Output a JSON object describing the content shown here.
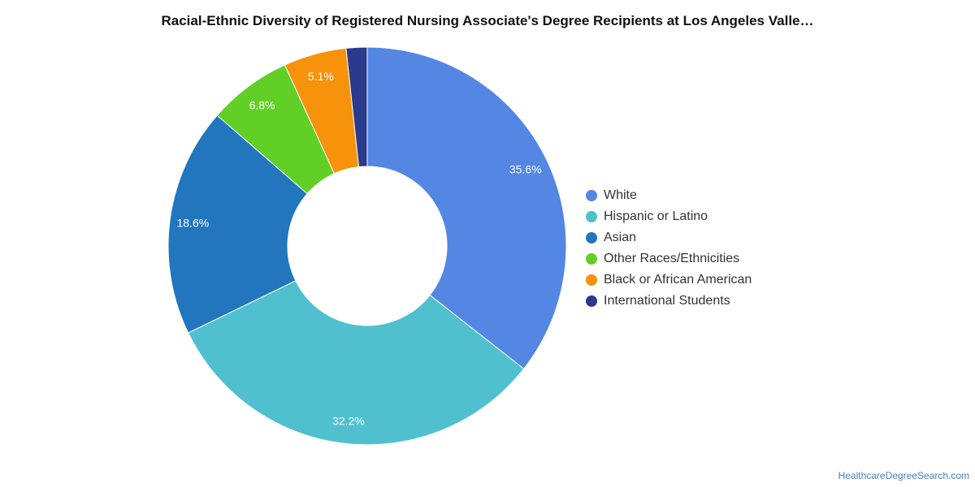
{
  "title": "Racial-Ethnic Diversity of Registered Nursing Associate's Degree Recipients at Los Angeles Valle…",
  "source": "HealthcareDegreeSearch.com",
  "chart_data": {
    "type": "pie",
    "variant": "donut",
    "title": "Racial-Ethnic Diversity of Registered Nursing Associate's Degree Recipients at Los Angeles Valle…",
    "legend_position": "right",
    "slices": [
      {
        "name": "White",
        "value": 35.6,
        "label": "35.6%",
        "color": "#5486e3"
      },
      {
        "name": "Hispanic or Latino",
        "value": 32.2,
        "label": "32.2%",
        "color": "#50c0cf"
      },
      {
        "name": "Asian",
        "value": 18.6,
        "label": "18.6%",
        "color": "#2176bd"
      },
      {
        "name": "Other Races/Ethnicities",
        "value": 6.8,
        "label": "6.8%",
        "color": "#62cf26"
      },
      {
        "name": "Black or African American",
        "value": 5.1,
        "label": "5.1%",
        "color": "#f7920b"
      },
      {
        "name": "International Students",
        "value": 1.7,
        "label": "",
        "color": "#2a3a8c"
      }
    ]
  }
}
